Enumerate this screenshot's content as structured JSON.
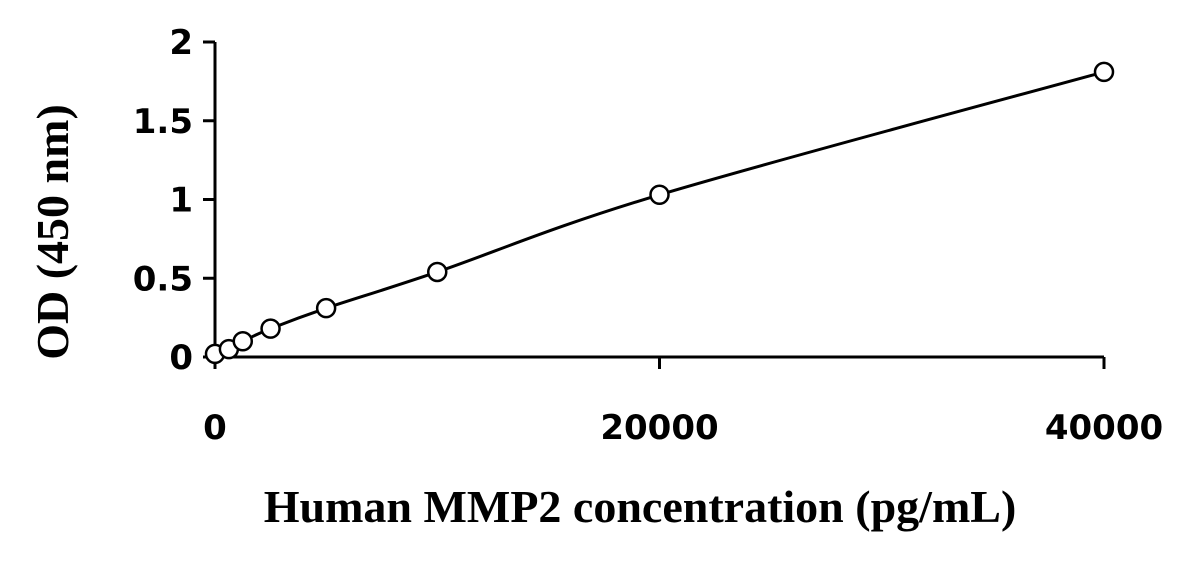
{
  "chart_data": {
    "type": "scatter",
    "title": "",
    "xlabel": "Human  MMP2 concentration (pg/mL)",
    "ylabel": "OD (450 nm)",
    "xlim": [
      0,
      40000
    ],
    "ylim": [
      0,
      2
    ],
    "xticks": [
      0,
      20000,
      40000
    ],
    "xtick_labels": [
      "0",
      "20000",
      "40000"
    ],
    "yticks": [
      0,
      0.5,
      1,
      1.5,
      2
    ],
    "ytick_labels": [
      "0",
      "0.5",
      "1",
      "1.5",
      "2"
    ],
    "grid": false,
    "legend": "none",
    "series": [
      {
        "x": [
          0,
          625,
          1250,
          2500,
          5000,
          10000,
          20000,
          40000
        ],
        "y": [
          0.02,
          0.05,
          0.1,
          0.18,
          0.31,
          0.54,
          1.03,
          1.81
        ],
        "marker": "open-circle",
        "fit_curve": true
      }
    ]
  }
}
